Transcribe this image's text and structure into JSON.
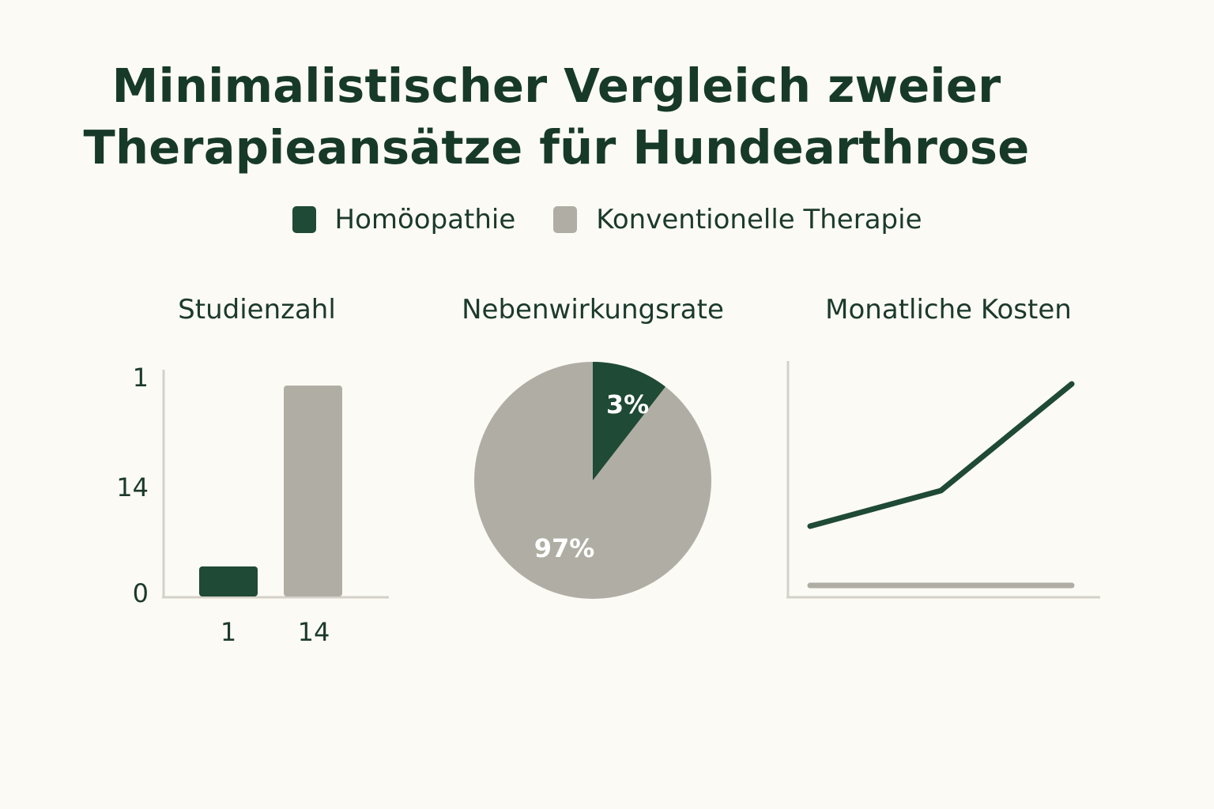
{
  "title_lines": [
    "Minimalistischer Vergleich zweier",
    "Therapieansätze für Hundearthrose"
  ],
  "legend": [
    {
      "label": "Homöopathie",
      "color": "#1f4a35"
    },
    {
      "label": "Konventionelle Therapie",
      "color": "#b0aea4"
    }
  ],
  "colors": {
    "primary": "#1f4a35",
    "secondary": "#b0aea4",
    "axis": "#d4d1c8",
    "background": "#fcfaf4",
    "text": "#1b3a2b"
  },
  "chart_data": [
    {
      "type": "bar",
      "title": "Studienzahl",
      "categories": [
        "1",
        "14"
      ],
      "values": [
        1,
        14
      ],
      "y_tick_labels": [
        "1",
        "14",
        "0"
      ]
    },
    {
      "type": "pie",
      "title": "Nebenwirkungsrate",
      "labels": [
        "3%",
        "97%"
      ],
      "values": [
        3,
        97
      ]
    },
    {
      "type": "line",
      "title": "Monatliche Kosten",
      "x": [
        0,
        1,
        2
      ],
      "series": [
        {
          "values": [
            30,
            45,
            90
          ]
        },
        {
          "values": [
            5,
            5,
            5
          ]
        }
      ],
      "ylim": [
        0,
        100
      ]
    }
  ]
}
